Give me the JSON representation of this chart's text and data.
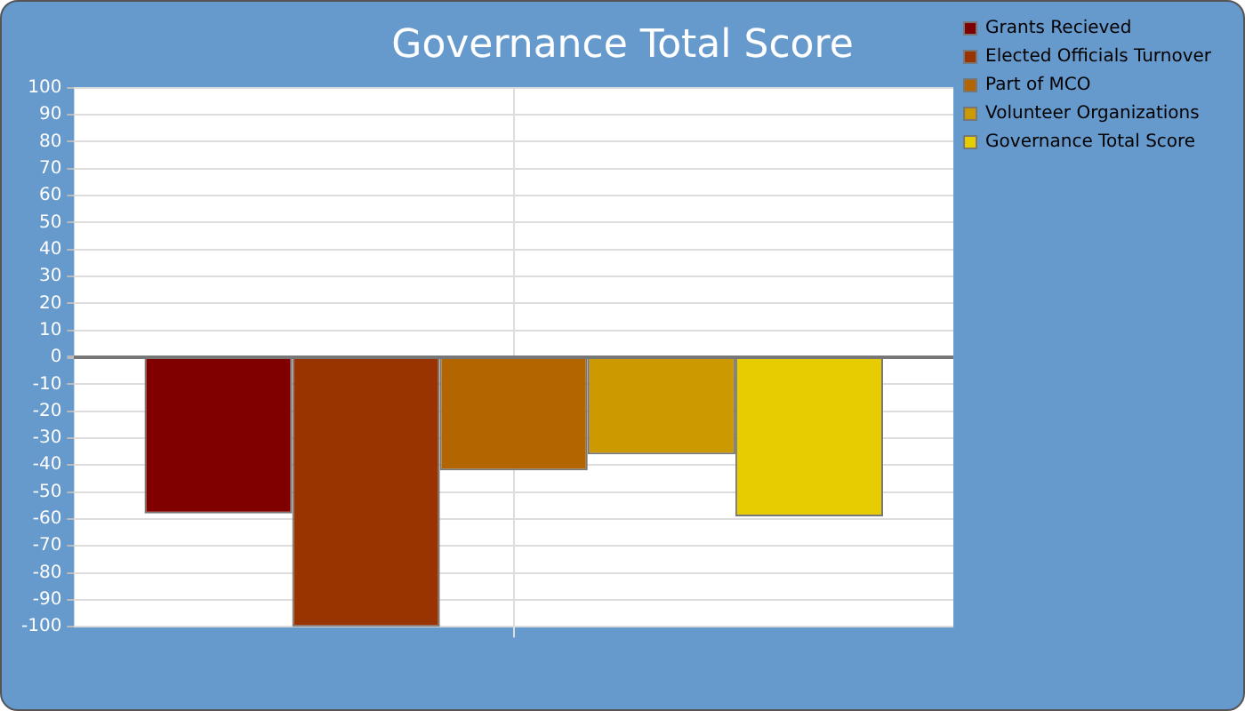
{
  "chart_data": {
    "type": "bar",
    "title": "Governance Total Score",
    "categories": [
      null
    ],
    "series": [
      {
        "name": "Grants Recieved",
        "color": "#800000",
        "values": [
          -58
        ]
      },
      {
        "name": "Elected Officials Turnover",
        "color": "#993300",
        "values": [
          -100
        ]
      },
      {
        "name": "Part of MCO",
        "color": "#b36600",
        "values": [
          -42
        ]
      },
      {
        "name": "Volunteer Organizations",
        "color": "#cc9900",
        "values": [
          -36
        ]
      },
      {
        "name": "Governance Total Score",
        "color": "#e6cc00",
        "values": [
          -59
        ]
      }
    ],
    "ylim": [
      -100,
      100
    ],
    "yticks": [
      -100,
      -90,
      -80,
      -70,
      -60,
      -50,
      -40,
      -30,
      -20,
      -10,
      0,
      10,
      20,
      30,
      40,
      50,
      60,
      70,
      80,
      90,
      100
    ],
    "grid": true,
    "legend": "top right"
  }
}
